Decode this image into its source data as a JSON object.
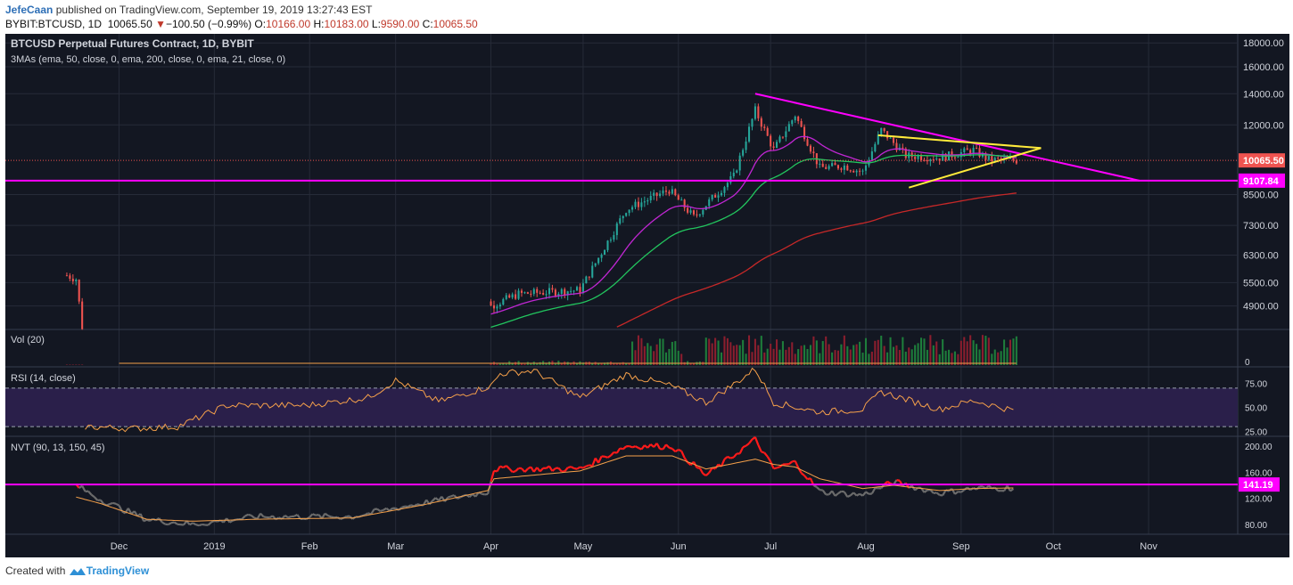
{
  "header": {
    "author": "JefeCaan",
    "published_text": "published on TradingView.com, September 19, 2019 13:27:43 EST",
    "symbol": "BYBIT:BTCUSD, 1D",
    "last": "10065.50",
    "change": "−100.50 (−0.99%)",
    "o_label": "O:",
    "o": "10166.00",
    "h_label": "H:",
    "h": "10183.00",
    "l_label": "L:",
    "l": "9590.00",
    "c_label": "C:",
    "c": "10065.50"
  },
  "footer": {
    "created_with": "Created with",
    "brand": "TradingView"
  },
  "colors": {
    "background": "#131722",
    "grid": "#262b38",
    "text": "#d1d4dc",
    "up": "#26a69a",
    "down": "#ef5350",
    "magenta": "#ff00ff",
    "yellow": "#ffeb3b",
    "ema21": "#c026d3",
    "ema50": "#22c55e",
    "ema200": "#c62828",
    "price_label": "#ef5350",
    "orange": "#f5a04a"
  },
  "chart_data": [
    {
      "type": "candlestick",
      "title": "BTCUSD Perpetual Futures Contract, 1D, BYBIT",
      "subtitle": "3MAs (ema, 50, close, 0, ema, 200, close, 0, ema, 21, close, 0)",
      "y_scale": "log",
      "ylim": [
        4400,
        18500
      ],
      "y_ticks": [
        "18000.00",
        "16000.00",
        "14000.00",
        "12000.00",
        "8500.00",
        "7300.00",
        "6300.00",
        "5500.00",
        "4900.00"
      ],
      "x_ticks": [
        "Dec",
        "2019",
        "Feb",
        "Mar",
        "Apr",
        "May",
        "Jun",
        "Jul",
        "Aug",
        "Sep",
        "Oct",
        "Nov"
      ],
      "price_labels": [
        {
          "text": "10065.50",
          "value": 10065.5,
          "color": "#ef5350"
        },
        {
          "text": "9107.84",
          "value": 9107.84,
          "color": "#ff00ff"
        }
      ],
      "ohlc_anchors": {
        "dates": [
          "2018-11-14",
          "2018-11-17",
          "2018-11-19",
          "2019-04-01",
          "2019-04-10",
          "2019-04-30",
          "2019-05-15",
          "2019-05-29",
          "2019-06-06",
          "2019-06-19",
          "2019-06-26",
          "2019-07-02",
          "2019-07-09",
          "2019-07-17",
          "2019-07-25",
          "2019-07-31",
          "2019-08-06",
          "2019-08-14",
          "2019-08-25",
          "2019-09-05",
          "2019-09-10",
          "2019-09-19"
        ],
        "close": [
          5700,
          5600,
          4420,
          4900,
          5200,
          5300,
          7900,
          8700,
          7600,
          9300,
          12900,
          10600,
          12600,
          9700,
          9800,
          9500,
          11700,
          10300,
          10200,
          10600,
          10100,
          10065.5
        ]
      },
      "trendlines": [
        {
          "name": "falling-resistance",
          "color": "#ff00ff",
          "from": [
            "2019-06-26",
            14000
          ],
          "to": [
            "2019-10-29",
            9107.84
          ]
        },
        {
          "name": "support",
          "color": "#ff00ff",
          "level": 9107.84
        },
        {
          "name": "triangle-upper",
          "color": "#ffeb3b",
          "from": [
            "2019-08-05",
            11400
          ],
          "to": [
            "2019-09-27",
            10700
          ]
        },
        {
          "name": "triangle-lower",
          "color": "#ffeb3b",
          "from": [
            "2019-08-15",
            8800
          ],
          "to": [
            "2019-09-27",
            10700
          ]
        }
      ]
    },
    {
      "type": "bar",
      "title": "Vol (20)",
      "y_ticks": [
        "0"
      ]
    },
    {
      "type": "line",
      "title": "RSI (14, close)",
      "ylim": [
        20,
        92
      ],
      "y_ticks": [
        "75.00",
        "50.00",
        "25.00"
      ],
      "bands": [
        70,
        30
      ],
      "x": [
        "2018-11-20",
        "2018-12-05",
        "2018-12-20",
        "2019-01-05",
        "2019-01-31",
        "2019-02-20",
        "2019-03-01",
        "2019-03-15",
        "2019-04-01",
        "2019-04-04",
        "2019-04-15",
        "2019-04-30",
        "2019-05-15",
        "2019-05-30",
        "2019-06-10",
        "2019-06-20",
        "2019-06-26",
        "2019-07-02",
        "2019-07-17",
        "2019-07-31",
        "2019-08-06",
        "2019-08-25",
        "2019-09-05",
        "2019-09-19"
      ],
      "y": [
        30,
        28,
        30,
        52,
        52,
        60,
        78,
        56,
        72,
        85,
        88,
        60,
        84,
        72,
        55,
        76,
        90,
        55,
        45,
        48,
        66,
        48,
        57,
        46
      ]
    },
    {
      "type": "line",
      "title": "NVT (90, 13, 150, 45)",
      "ylim": [
        65,
        215
      ],
      "y_ticks": [
        "200.00",
        "160.00",
        "120.00",
        "80.00"
      ],
      "price_labels": [
        {
          "text": "141.19",
          "value": 141.19,
          "color": "#ff00ff"
        }
      ],
      "threshold": 141.19,
      "x": [
        "2018-11-17",
        "2018-11-25",
        "2018-12-10",
        "2018-12-25",
        "2019-01-15",
        "2019-02-15",
        "2019-03-10",
        "2019-03-31",
        "2019-04-02",
        "2019-04-30",
        "2019-05-15",
        "2019-05-30",
        "2019-06-10",
        "2019-06-26",
        "2019-07-02",
        "2019-07-09",
        "2019-07-17",
        "2019-07-31",
        "2019-08-10",
        "2019-08-25",
        "2019-09-05",
        "2019-09-19"
      ],
      "y": [
        140,
        118,
        88,
        80,
        92,
        92,
        113,
        130,
        165,
        165,
        200,
        200,
        155,
        210,
        165,
        175,
        130,
        125,
        145,
        128,
        135,
        136
      ],
      "signal": [
        122,
        112,
        88,
        85,
        88,
        90,
        110,
        132,
        150,
        162,
        185,
        185,
        165,
        180,
        172,
        168,
        150,
        135,
        140,
        132,
        135,
        136
      ]
    }
  ]
}
